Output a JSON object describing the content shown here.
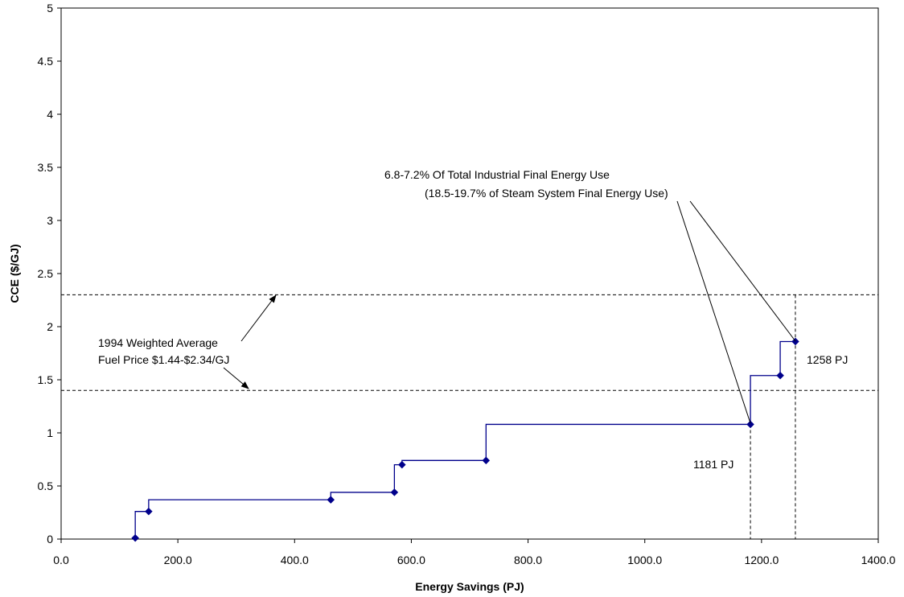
{
  "chart_data": {
    "type": "line",
    "title": "",
    "xlabel": "Energy Savings (PJ)",
    "ylabel": "CCE ($/GJ)",
    "xlim": [
      0,
      1400
    ],
    "ylim": [
      0,
      5
    ],
    "x_ticks": [
      0,
      200,
      400,
      600,
      800,
      1000,
      1200,
      1400
    ],
    "x_tick_labels": [
      "0.0",
      "200.0",
      "400.0",
      "600.0",
      "800.0",
      "1000.0",
      "1200.0",
      "1400.0"
    ],
    "y_ticks": [
      0,
      0.5,
      1,
      1.5,
      2,
      2.5,
      3,
      3.5,
      4,
      4.5,
      5
    ],
    "y_tick_labels": [
      "0",
      "0.5",
      "1",
      "1.5",
      "2",
      "2.5",
      "3",
      "3.5",
      "4",
      "4.5",
      "5"
    ],
    "grid": false,
    "series": [
      {
        "style": "step",
        "color": "#00008B",
        "points": [
          {
            "x": 127,
            "y": 0.01
          },
          {
            "x": 150,
            "y": 0.26
          },
          {
            "x": 462,
            "y": 0.37
          },
          {
            "x": 571,
            "y": 0.44
          },
          {
            "x": 584,
            "y": 0.7
          },
          {
            "x": 728,
            "y": 0.74
          },
          {
            "x": 1181,
            "y": 1.08
          },
          {
            "x": 1232,
            "y": 1.54
          },
          {
            "x": 1258,
            "y": 1.86
          }
        ]
      }
    ],
    "reference_lines": [
      {
        "orientation": "horizontal",
        "value": 1.4,
        "style": "dashed"
      },
      {
        "orientation": "horizontal",
        "value": 2.3,
        "style": "dashed"
      },
      {
        "orientation": "vertical",
        "value": 1181,
        "y_max": 1.08,
        "style": "dashed"
      },
      {
        "orientation": "vertical",
        "value": 1258,
        "y_max": 2.3,
        "style": "dashed"
      }
    ],
    "annotations": {
      "fuel_price": {
        "lines": [
          "1994 Weighted Average",
          "Fuel Price $1.44-$2.34/GJ"
        ]
      },
      "total_energy": {
        "lines": [
          "6.8-7.2% Of Total Industrial Final Energy Use",
          "(18.5-19.7% of Steam System Final Energy Use)"
        ]
      },
      "label_1181": {
        "text": "1181 PJ"
      },
      "label_1258": {
        "text": "1258 PJ"
      }
    }
  }
}
